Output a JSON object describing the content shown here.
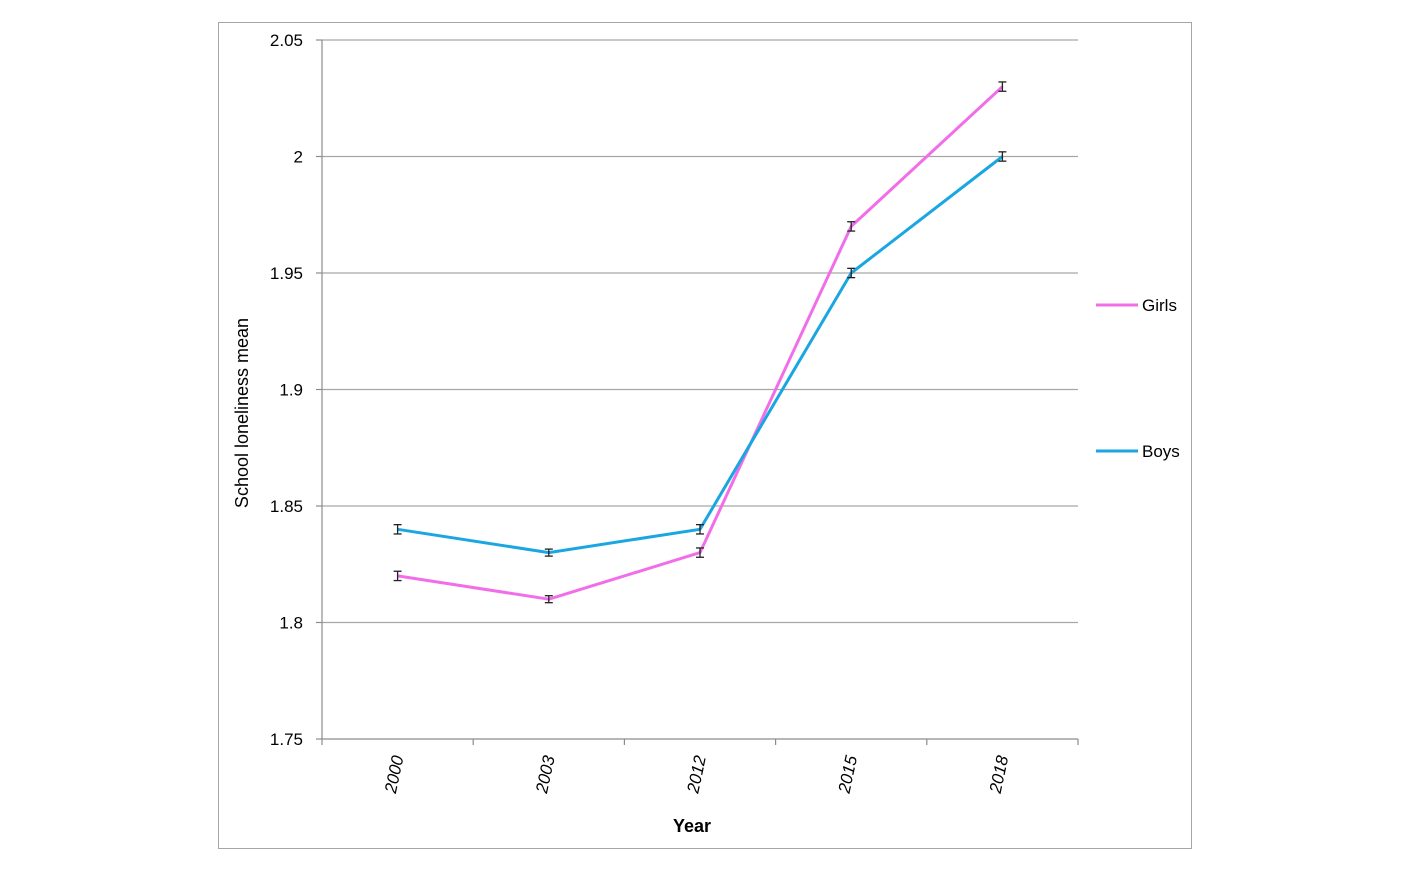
{
  "chart_data": {
    "type": "line",
    "xlabel": "Year",
    "ylabel": "School loneliness mean",
    "categories": [
      "2000",
      "2003",
      "2012",
      "2015",
      "2018"
    ],
    "ylim": [
      1.75,
      2.05
    ],
    "yticks": [
      "1.75",
      "1.8",
      "1.85",
      "1.9",
      "1.95",
      "2",
      "2.05"
    ],
    "grid": true,
    "legend_position": "right",
    "error_bars": true,
    "series": [
      {
        "name": "Girls",
        "color": "#f26ee9",
        "values": [
          1.82,
          1.81,
          1.83,
          1.97,
          2.03
        ],
        "error": [
          0.002,
          0.0015,
          0.002,
          0.002,
          0.002
        ]
      },
      {
        "name": "Boys",
        "color": "#1aa6e0",
        "values": [
          1.84,
          1.83,
          1.84,
          1.95,
          2.0
        ],
        "error": [
          0.002,
          0.0015,
          0.002,
          0.002,
          0.002
        ]
      }
    ]
  }
}
